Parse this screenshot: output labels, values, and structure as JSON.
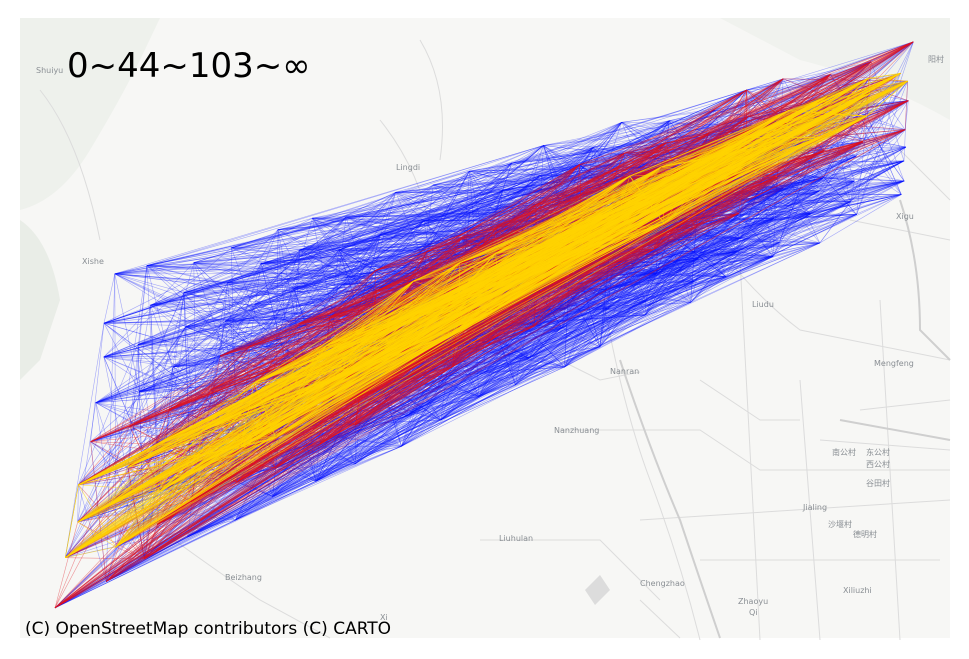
{
  "map": {
    "title": "0~44~103~∞",
    "attribution": "(C) OpenStreetMap contributors (C) CARTO",
    "basemap_style": "CARTO light",
    "colors": {
      "background": "#f7f7f5",
      "road": "#dcdcdc",
      "road_major": "#cfcfcf",
      "park": "#e7ece6",
      "low_flow": "#0a14ff",
      "mid_flow": "#e0141e",
      "high_flow": "#ffd400"
    },
    "flow_classes": [
      {
        "range": "0~44",
        "color": "#0a14ff"
      },
      {
        "range": "44~103",
        "color": "#e0141e"
      },
      {
        "range": "103~∞",
        "color": "#ffd400"
      }
    ],
    "place_labels": [
      {
        "name": "Shuiyu",
        "id": "shuiyu"
      },
      {
        "name": "Lingdi",
        "id": "lingdi"
      },
      {
        "name": "Xishe",
        "id": "xishe"
      },
      {
        "name": "Xigu",
        "id": "xigu"
      },
      {
        "name": "Liudu",
        "id": "liudu"
      },
      {
        "name": "Mengfeng",
        "id": "mengfeng"
      },
      {
        "name": "Nanran",
        "id": "nanran"
      },
      {
        "name": "Nanzhuang",
        "id": "nanzhuang"
      },
      {
        "name": "Liuhulan",
        "id": "liuhulan"
      },
      {
        "name": "Jialing",
        "id": "jialing"
      },
      {
        "name": "Beizhang",
        "id": "beizhang"
      },
      {
        "name": "Chengzhao",
        "id": "chengzhao"
      },
      {
        "name": "Zhaoyu",
        "id": "zhaoyu"
      },
      {
        "name": "Qi",
        "id": "qi"
      },
      {
        "name": "Xiliuzhi",
        "id": "xiliuzhi"
      },
      {
        "name": "Xi",
        "id": "xi"
      },
      {
        "name": "阳村",
        "id": "yangcun"
      },
      {
        "name": "南公村",
        "id": "nangongcun"
      },
      {
        "name": "东公村",
        "id": "donggongcun"
      },
      {
        "name": "西公村",
        "id": "xigongcun"
      },
      {
        "name": "谷田村",
        "id": "gutiancun"
      },
      {
        "name": "沙堰村",
        "id": "shayancun"
      },
      {
        "name": "德明村",
        "id": "demingcun"
      }
    ]
  }
}
